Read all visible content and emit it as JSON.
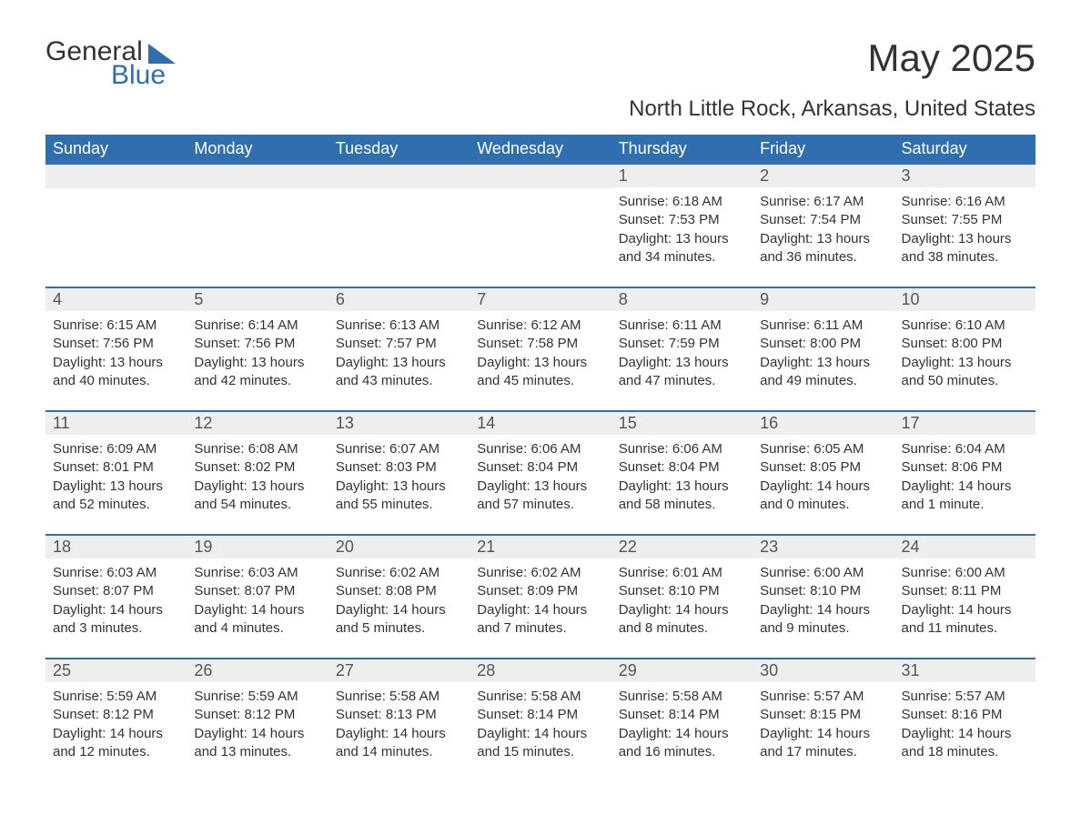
{
  "logo": {
    "text1": "General",
    "text2": "Blue"
  },
  "title": "May 2025",
  "location": "North Little Rock, Arkansas, United States",
  "header_bg": "#2f6fb0",
  "header_text_color": "#ffffff",
  "daynum_bg": "#eeeeee",
  "row_border_color": "#2f6fb0",
  "weekdays": [
    "Sunday",
    "Monday",
    "Tuesday",
    "Wednesday",
    "Thursday",
    "Friday",
    "Saturday"
  ],
  "weeks": [
    [
      {
        "num": "",
        "sunrise": "",
        "sunset": "",
        "daylight": ""
      },
      {
        "num": "",
        "sunrise": "",
        "sunset": "",
        "daylight": ""
      },
      {
        "num": "",
        "sunrise": "",
        "sunset": "",
        "daylight": ""
      },
      {
        "num": "",
        "sunrise": "",
        "sunset": "",
        "daylight": ""
      },
      {
        "num": "1",
        "sunrise": "Sunrise: 6:18 AM",
        "sunset": "Sunset: 7:53 PM",
        "daylight": "Daylight: 13 hours and 34 minutes."
      },
      {
        "num": "2",
        "sunrise": "Sunrise: 6:17 AM",
        "sunset": "Sunset: 7:54 PM",
        "daylight": "Daylight: 13 hours and 36 minutes."
      },
      {
        "num": "3",
        "sunrise": "Sunrise: 6:16 AM",
        "sunset": "Sunset: 7:55 PM",
        "daylight": "Daylight: 13 hours and 38 minutes."
      }
    ],
    [
      {
        "num": "4",
        "sunrise": "Sunrise: 6:15 AM",
        "sunset": "Sunset: 7:56 PM",
        "daylight": "Daylight: 13 hours and 40 minutes."
      },
      {
        "num": "5",
        "sunrise": "Sunrise: 6:14 AM",
        "sunset": "Sunset: 7:56 PM",
        "daylight": "Daylight: 13 hours and 42 minutes."
      },
      {
        "num": "6",
        "sunrise": "Sunrise: 6:13 AM",
        "sunset": "Sunset: 7:57 PM",
        "daylight": "Daylight: 13 hours and 43 minutes."
      },
      {
        "num": "7",
        "sunrise": "Sunrise: 6:12 AM",
        "sunset": "Sunset: 7:58 PM",
        "daylight": "Daylight: 13 hours and 45 minutes."
      },
      {
        "num": "8",
        "sunrise": "Sunrise: 6:11 AM",
        "sunset": "Sunset: 7:59 PM",
        "daylight": "Daylight: 13 hours and 47 minutes."
      },
      {
        "num": "9",
        "sunrise": "Sunrise: 6:11 AM",
        "sunset": "Sunset: 8:00 PM",
        "daylight": "Daylight: 13 hours and 49 minutes."
      },
      {
        "num": "10",
        "sunrise": "Sunrise: 6:10 AM",
        "sunset": "Sunset: 8:00 PM",
        "daylight": "Daylight: 13 hours and 50 minutes."
      }
    ],
    [
      {
        "num": "11",
        "sunrise": "Sunrise: 6:09 AM",
        "sunset": "Sunset: 8:01 PM",
        "daylight": "Daylight: 13 hours and 52 minutes."
      },
      {
        "num": "12",
        "sunrise": "Sunrise: 6:08 AM",
        "sunset": "Sunset: 8:02 PM",
        "daylight": "Daylight: 13 hours and 54 minutes."
      },
      {
        "num": "13",
        "sunrise": "Sunrise: 6:07 AM",
        "sunset": "Sunset: 8:03 PM",
        "daylight": "Daylight: 13 hours and 55 minutes."
      },
      {
        "num": "14",
        "sunrise": "Sunrise: 6:06 AM",
        "sunset": "Sunset: 8:04 PM",
        "daylight": "Daylight: 13 hours and 57 minutes."
      },
      {
        "num": "15",
        "sunrise": "Sunrise: 6:06 AM",
        "sunset": "Sunset: 8:04 PM",
        "daylight": "Daylight: 13 hours and 58 minutes."
      },
      {
        "num": "16",
        "sunrise": "Sunrise: 6:05 AM",
        "sunset": "Sunset: 8:05 PM",
        "daylight": "Daylight: 14 hours and 0 minutes."
      },
      {
        "num": "17",
        "sunrise": "Sunrise: 6:04 AM",
        "sunset": "Sunset: 8:06 PM",
        "daylight": "Daylight: 14 hours and 1 minute."
      }
    ],
    [
      {
        "num": "18",
        "sunrise": "Sunrise: 6:03 AM",
        "sunset": "Sunset: 8:07 PM",
        "daylight": "Daylight: 14 hours and 3 minutes."
      },
      {
        "num": "19",
        "sunrise": "Sunrise: 6:03 AM",
        "sunset": "Sunset: 8:07 PM",
        "daylight": "Daylight: 14 hours and 4 minutes."
      },
      {
        "num": "20",
        "sunrise": "Sunrise: 6:02 AM",
        "sunset": "Sunset: 8:08 PM",
        "daylight": "Daylight: 14 hours and 5 minutes."
      },
      {
        "num": "21",
        "sunrise": "Sunrise: 6:02 AM",
        "sunset": "Sunset: 8:09 PM",
        "daylight": "Daylight: 14 hours and 7 minutes."
      },
      {
        "num": "22",
        "sunrise": "Sunrise: 6:01 AM",
        "sunset": "Sunset: 8:10 PM",
        "daylight": "Daylight: 14 hours and 8 minutes."
      },
      {
        "num": "23",
        "sunrise": "Sunrise: 6:00 AM",
        "sunset": "Sunset: 8:10 PM",
        "daylight": "Daylight: 14 hours and 9 minutes."
      },
      {
        "num": "24",
        "sunrise": "Sunrise: 6:00 AM",
        "sunset": "Sunset: 8:11 PM",
        "daylight": "Daylight: 14 hours and 11 minutes."
      }
    ],
    [
      {
        "num": "25",
        "sunrise": "Sunrise: 5:59 AM",
        "sunset": "Sunset: 8:12 PM",
        "daylight": "Daylight: 14 hours and 12 minutes."
      },
      {
        "num": "26",
        "sunrise": "Sunrise: 5:59 AM",
        "sunset": "Sunset: 8:12 PM",
        "daylight": "Daylight: 14 hours and 13 minutes."
      },
      {
        "num": "27",
        "sunrise": "Sunrise: 5:58 AM",
        "sunset": "Sunset: 8:13 PM",
        "daylight": "Daylight: 14 hours and 14 minutes."
      },
      {
        "num": "28",
        "sunrise": "Sunrise: 5:58 AM",
        "sunset": "Sunset: 8:14 PM",
        "daylight": "Daylight: 14 hours and 15 minutes."
      },
      {
        "num": "29",
        "sunrise": "Sunrise: 5:58 AM",
        "sunset": "Sunset: 8:14 PM",
        "daylight": "Daylight: 14 hours and 16 minutes."
      },
      {
        "num": "30",
        "sunrise": "Sunrise: 5:57 AM",
        "sunset": "Sunset: 8:15 PM",
        "daylight": "Daylight: 14 hours and 17 minutes."
      },
      {
        "num": "31",
        "sunrise": "Sunrise: 5:57 AM",
        "sunset": "Sunset: 8:16 PM",
        "daylight": "Daylight: 14 hours and 18 minutes."
      }
    ]
  ]
}
